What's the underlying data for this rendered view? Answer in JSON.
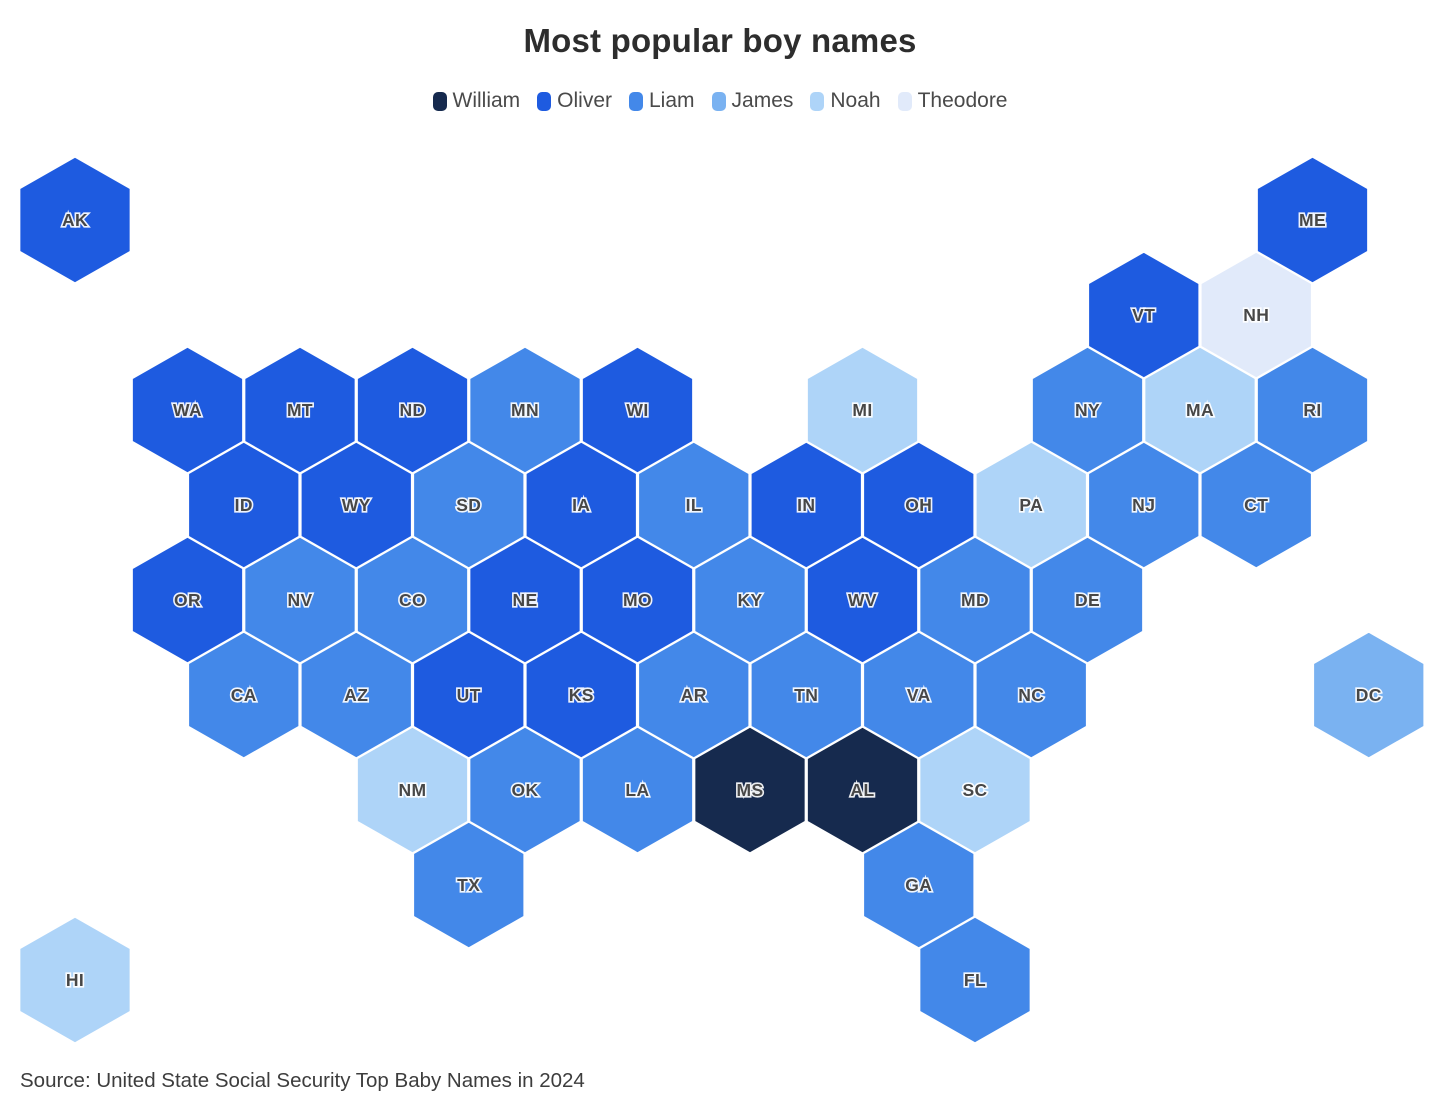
{
  "title": "Most popular boy names",
  "source": "Source: United State Social Security Top Baby Names in 2024",
  "legend": [
    {
      "name": "William",
      "color": "#162a4e"
    },
    {
      "name": "Oliver",
      "color": "#1e5be0"
    },
    {
      "name": "Liam",
      "color": "#4388e9"
    },
    {
      "name": "James",
      "color": "#7ab2f1"
    },
    {
      "name": "Noah",
      "color": "#aed4f8"
    },
    {
      "name": "Theodore",
      "color": "#e1eafa"
    }
  ],
  "chart_data": {
    "type": "heatmap",
    "subtype": "hex-tile-map-of-us-states",
    "title": "Most popular boy names",
    "legend_position": "top-center",
    "categories": [
      "William",
      "Oliver",
      "Liam",
      "James",
      "Noah",
      "Theodore"
    ],
    "states": [
      {
        "abbr": "AK",
        "name": "Oliver",
        "col": 0,
        "row": 0
      },
      {
        "abbr": "ME",
        "name": "Oliver",
        "col": 22,
        "row": 0
      },
      {
        "abbr": "VT",
        "name": "Oliver",
        "col": 19,
        "row": 1
      },
      {
        "abbr": "NH",
        "name": "Theodore",
        "col": 21,
        "row": 1
      },
      {
        "abbr": "WA",
        "name": "Oliver",
        "col": 2,
        "row": 2
      },
      {
        "abbr": "MT",
        "name": "Oliver",
        "col": 4,
        "row": 2
      },
      {
        "abbr": "ND",
        "name": "Oliver",
        "col": 6,
        "row": 2
      },
      {
        "abbr": "MN",
        "name": "Liam",
        "col": 8,
        "row": 2
      },
      {
        "abbr": "WI",
        "name": "Oliver",
        "col": 10,
        "row": 2
      },
      {
        "abbr": "MI",
        "name": "Noah",
        "col": 14,
        "row": 2
      },
      {
        "abbr": "NY",
        "name": "Liam",
        "col": 18,
        "row": 2
      },
      {
        "abbr": "MA",
        "name": "Noah",
        "col": 20,
        "row": 2
      },
      {
        "abbr": "RI",
        "name": "Liam",
        "col": 22,
        "row": 2
      },
      {
        "abbr": "ID",
        "name": "Oliver",
        "col": 3,
        "row": 3
      },
      {
        "abbr": "WY",
        "name": "Oliver",
        "col": 5,
        "row": 3
      },
      {
        "abbr": "SD",
        "name": "Liam",
        "col": 7,
        "row": 3
      },
      {
        "abbr": "IA",
        "name": "Oliver",
        "col": 9,
        "row": 3
      },
      {
        "abbr": "IL",
        "name": "Liam",
        "col": 11,
        "row": 3
      },
      {
        "abbr": "IN",
        "name": "Oliver",
        "col": 13,
        "row": 3
      },
      {
        "abbr": "OH",
        "name": "Oliver",
        "col": 15,
        "row": 3
      },
      {
        "abbr": "PA",
        "name": "Noah",
        "col": 17,
        "row": 3
      },
      {
        "abbr": "NJ",
        "name": "Liam",
        "col": 19,
        "row": 3
      },
      {
        "abbr": "CT",
        "name": "Liam",
        "col": 21,
        "row": 3
      },
      {
        "abbr": "OR",
        "name": "Oliver",
        "col": 2,
        "row": 4
      },
      {
        "abbr": "NV",
        "name": "Liam",
        "col": 4,
        "row": 4
      },
      {
        "abbr": "CO",
        "name": "Liam",
        "col": 6,
        "row": 4
      },
      {
        "abbr": "NE",
        "name": "Oliver",
        "col": 8,
        "row": 4
      },
      {
        "abbr": "MO",
        "name": "Oliver",
        "col": 10,
        "row": 4
      },
      {
        "abbr": "KY",
        "name": "Liam",
        "col": 12,
        "row": 4
      },
      {
        "abbr": "WV",
        "name": "Oliver",
        "col": 14,
        "row": 4
      },
      {
        "abbr": "MD",
        "name": "Liam",
        "col": 16,
        "row": 4
      },
      {
        "abbr": "DE",
        "name": "Liam",
        "col": 18,
        "row": 4
      },
      {
        "abbr": "CA",
        "name": "Liam",
        "col": 3,
        "row": 5
      },
      {
        "abbr": "AZ",
        "name": "Liam",
        "col": 5,
        "row": 5
      },
      {
        "abbr": "UT",
        "name": "Oliver",
        "col": 7,
        "row": 5
      },
      {
        "abbr": "KS",
        "name": "Oliver",
        "col": 9,
        "row": 5
      },
      {
        "abbr": "AR",
        "name": "Liam",
        "col": 11,
        "row": 5
      },
      {
        "abbr": "TN",
        "name": "Liam",
        "col": 13,
        "row": 5
      },
      {
        "abbr": "VA",
        "name": "Liam",
        "col": 15,
        "row": 5
      },
      {
        "abbr": "NC",
        "name": "Liam",
        "col": 17,
        "row": 5
      },
      {
        "abbr": "DC",
        "name": "James",
        "col": 23,
        "row": 5
      },
      {
        "abbr": "NM",
        "name": "Noah",
        "col": 6,
        "row": 6
      },
      {
        "abbr": "OK",
        "name": "Liam",
        "col": 8,
        "row": 6
      },
      {
        "abbr": "LA",
        "name": "Liam",
        "col": 10,
        "row": 6
      },
      {
        "abbr": "MS",
        "name": "William",
        "col": 12,
        "row": 6
      },
      {
        "abbr": "AL",
        "name": "William",
        "col": 14,
        "row": 6
      },
      {
        "abbr": "SC",
        "name": "Noah",
        "col": 16,
        "row": 6
      },
      {
        "abbr": "TX",
        "name": "Liam",
        "col": 7,
        "row": 7
      },
      {
        "abbr": "GA",
        "name": "Liam",
        "col": 15,
        "row": 7
      },
      {
        "abbr": "HI",
        "name": "Noah",
        "col": 0,
        "row": 8
      },
      {
        "abbr": "FL",
        "name": "Liam",
        "col": 16,
        "row": 8
      }
    ]
  }
}
